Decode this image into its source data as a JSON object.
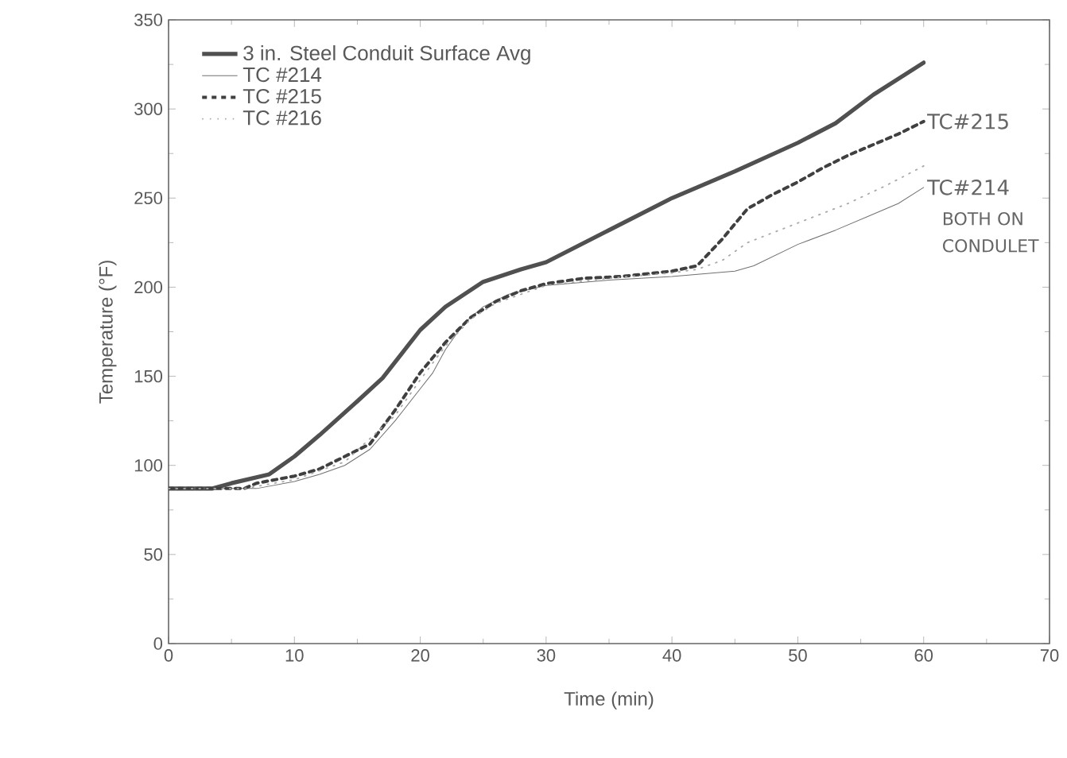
{
  "chart_data": {
    "type": "line",
    "xlabel": "Time (min)",
    "ylabel": "Temperature (°F)",
    "xlim": [
      0,
      70
    ],
    "xticks": [
      0,
      10,
      20,
      30,
      40,
      50,
      60,
      70
    ],
    "ylim": [
      0,
      350
    ],
    "yticks": [
      0,
      50,
      100,
      150,
      200,
      250,
      300,
      350
    ],
    "grid": false,
    "legend": "top left",
    "marker": "none",
    "series": [
      {
        "name": "3 in. Steel Conduit Surface Avg",
        "color": "#505050",
        "line_style": "solid",
        "x": [
          0,
          3.5,
          5,
          8,
          10,
          12,
          15,
          17,
          19,
          20,
          22,
          25,
          28,
          30,
          35,
          40,
          45,
          50,
          53,
          56,
          60
        ],
        "values": [
          87,
          87,
          90,
          95,
          105,
          117,
          136,
          149,
          167,
          176,
          189,
          203,
          210,
          214,
          232,
          250,
          265,
          281,
          292,
          308,
          326
        ]
      },
      {
        "name": "TC #214",
        "color": "#707070",
        "line_style": "solid",
        "x": [
          0,
          7,
          10,
          12,
          14,
          16,
          18,
          20,
          21,
          22,
          23.5,
          25,
          27,
          30,
          35,
          40,
          45,
          46.5,
          50,
          53,
          56,
          58,
          60
        ],
        "values": [
          87,
          87,
          91,
          95,
          100,
          109,
          125,
          143,
          152,
          165,
          180,
          189,
          196,
          201,
          204,
          206,
          209,
          212,
          224,
          232,
          241,
          247,
          256
        ]
      },
      {
        "name": "TC #215",
        "color": "#404040",
        "line_style": "dashed",
        "x": [
          0,
          6,
          7,
          10,
          12,
          14,
          16,
          18,
          20,
          22,
          24,
          26,
          28,
          30,
          33,
          36,
          40,
          42,
          44,
          46,
          48,
          50,
          52,
          54,
          56,
          58,
          60
        ],
        "values": [
          87,
          87,
          90,
          94,
          98,
          105,
          112,
          131,
          152,
          169,
          183,
          192,
          198,
          202,
          205,
          206,
          209,
          212,
          227,
          244,
          252,
          259,
          267,
          274,
          280,
          286,
          293
        ]
      },
      {
        "name": "TC #216",
        "color": "#a8a8a8",
        "line_style": "dotted",
        "x": [
          0,
          6,
          10,
          14,
          18,
          20,
          22,
          24,
          26,
          30,
          35,
          40,
          42,
          44,
          46,
          50,
          54,
          57,
          60
        ],
        "values": [
          87,
          87,
          92,
          102,
          128,
          148,
          167,
          182,
          191,
          201,
          205,
          208,
          210,
          215,
          225,
          236,
          247,
          257,
          268
        ]
      }
    ],
    "annotations": [
      {
        "text": "TC#215",
        "x": 60,
        "y": 293
      },
      {
        "text": "TC#214",
        "x": 60,
        "y": 256
      },
      "BOTH ON CONDULET"
    ]
  }
}
